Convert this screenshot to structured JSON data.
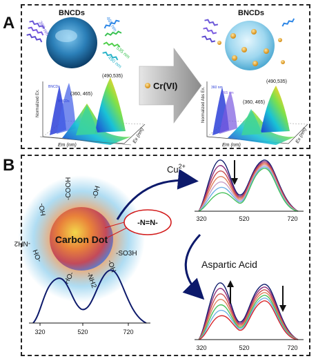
{
  "figure": {
    "panel_a_label": "A",
    "panel_b_label": "B"
  },
  "panel_a": {
    "left_title": "BNCDs",
    "right_title": "BNCDs",
    "left_wavelengths": [
      "360 nm",
      "465 nm",
      "535 nm",
      "490 nm"
    ],
    "arrow_label": "Cr(VI)",
    "left_plot": {
      "peak_labels": [
        "(490,535)",
        "(360, 465)"
      ],
      "axis_y": "Normalized Ex.",
      "axis_x": "Em (nm)",
      "axis_z": "Ex (nm)",
      "legend_items": [
        "BNCDs",
        "BNCDs"
      ]
    },
    "right_plot": {
      "peak_labels": [
        "(490,535)",
        "(360, 465)"
      ],
      "axis_y": "Normalized Abs Ex.",
      "axis_x": "Em (nm)",
      "axis_z": "Ex (nm)",
      "legend_items": [
        "360 nm",
        "465 nm"
      ]
    }
  },
  "panel_b": {
    "center_label": "Carbon Dot",
    "groups": [
      "-COOH",
      "-OH",
      "HO-",
      "-NH2",
      "-SO3H",
      "-OH",
      "HO-",
      "-NH2",
      "-OH"
    ],
    "linker_label": "-N=N-",
    "cu_label": "Cu",
    "cu_sup": "2+",
    "aspartic_label": "Aspartic Acid",
    "main_ticks": [
      "320",
      "520",
      "720"
    ],
    "top_ticks": [
      "320",
      "520",
      "720"
    ],
    "bottom_ticks": [
      "320",
      "520",
      "720"
    ]
  },
  "colors": {
    "frame": "#222222",
    "arrow_gray": "#8a8a8a",
    "navy": "#0d1a6b",
    "linker_red": "#d21a1a"
  }
}
